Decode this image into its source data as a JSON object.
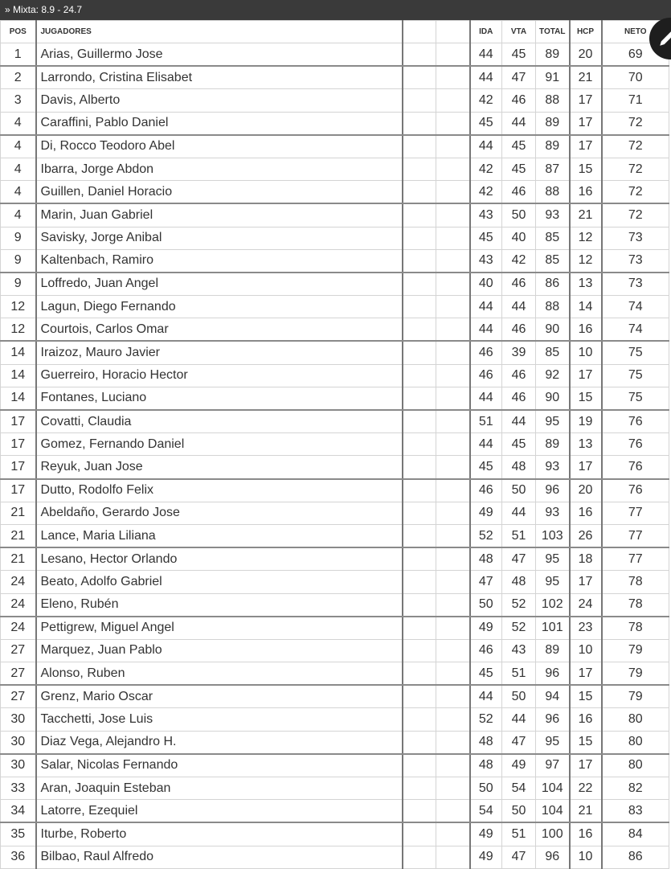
{
  "header": {
    "title": "» Mixta: 8.9 - 24.7"
  },
  "columns": {
    "pos": "POS",
    "jugadores": "JUGADORES",
    "blank1": "",
    "blank2": "",
    "ida": "IDA",
    "vta": "VTA",
    "total": "TOTAL",
    "hcp": "HCP",
    "neto": "NETO"
  },
  "fab": {
    "icon": "pencil-icon"
  },
  "rows": [
    [
      "1",
      "Arias, Guillermo Jose",
      "44",
      "45",
      "89",
      "20",
      "69"
    ],
    [
      "2",
      "Larrondo, Cristina Elisabet",
      "44",
      "47",
      "91",
      "21",
      "70"
    ],
    [
      "3",
      "Davis, Alberto",
      "42",
      "46",
      "88",
      "17",
      "71"
    ],
    [
      "4",
      "Caraffini, Pablo Daniel",
      "45",
      "44",
      "89",
      "17",
      "72"
    ],
    [
      "4",
      "Di, Rocco Teodoro Abel",
      "44",
      "45",
      "89",
      "17",
      "72"
    ],
    [
      "4",
      "Ibarra, Jorge Abdon",
      "42",
      "45",
      "87",
      "15",
      "72"
    ],
    [
      "4",
      "Guillen, Daniel Horacio",
      "42",
      "46",
      "88",
      "16",
      "72"
    ],
    [
      "4",
      "Marin, Juan Gabriel",
      "43",
      "50",
      "93",
      "21",
      "72"
    ],
    [
      "9",
      "Savisky, Jorge Anibal",
      "45",
      "40",
      "85",
      "12",
      "73"
    ],
    [
      "9",
      "Kaltenbach, Ramiro",
      "43",
      "42",
      "85",
      "12",
      "73"
    ],
    [
      "9",
      "Loffredo, Juan Angel",
      "40",
      "46",
      "86",
      "13",
      "73"
    ],
    [
      "12",
      "Lagun, Diego Fernando",
      "44",
      "44",
      "88",
      "14",
      "74"
    ],
    [
      "12",
      "Courtois, Carlos Omar",
      "44",
      "46",
      "90",
      "16",
      "74"
    ],
    [
      "14",
      "Iraizoz, Mauro Javier",
      "46",
      "39",
      "85",
      "10",
      "75"
    ],
    [
      "14",
      "Guerreiro, Horacio Hector",
      "46",
      "46",
      "92",
      "17",
      "75"
    ],
    [
      "14",
      "Fontanes, Luciano",
      "44",
      "46",
      "90",
      "15",
      "75"
    ],
    [
      "17",
      "Covatti, Claudia",
      "51",
      "44",
      "95",
      "19",
      "76"
    ],
    [
      "17",
      "Gomez, Fernando Daniel",
      "44",
      "45",
      "89",
      "13",
      "76"
    ],
    [
      "17",
      "Reyuk, Juan Jose",
      "45",
      "48",
      "93",
      "17",
      "76"
    ],
    [
      "17",
      "Dutto, Rodolfo Felix",
      "46",
      "50",
      "96",
      "20",
      "76"
    ],
    [
      "21",
      "Abeldaño, Gerardo Jose",
      "49",
      "44",
      "93",
      "16",
      "77"
    ],
    [
      "21",
      "Lance, Maria Liliana",
      "52",
      "51",
      "103",
      "26",
      "77"
    ],
    [
      "21",
      "Lesano, Hector Orlando",
      "48",
      "47",
      "95",
      "18",
      "77"
    ],
    [
      "24",
      "Beato, Adolfo Gabriel",
      "47",
      "48",
      "95",
      "17",
      "78"
    ],
    [
      "24",
      "Eleno, Rubén",
      "50",
      "52",
      "102",
      "24",
      "78"
    ],
    [
      "24",
      "Pettigrew, Miguel Angel",
      "49",
      "52",
      "101",
      "23",
      "78"
    ],
    [
      "27",
      "Marquez, Juan Pablo",
      "46",
      "43",
      "89",
      "10",
      "79"
    ],
    [
      "27",
      "Alonso, Ruben",
      "45",
      "51",
      "96",
      "17",
      "79"
    ],
    [
      "27",
      "Grenz, Mario Oscar",
      "44",
      "50",
      "94",
      "15",
      "79"
    ],
    [
      "30",
      "Tacchetti, Jose Luis",
      "52",
      "44",
      "96",
      "16",
      "80"
    ],
    [
      "30",
      "Diaz Vega, Alejandro H.",
      "48",
      "47",
      "95",
      "15",
      "80"
    ],
    [
      "30",
      "Salar, Nicolas Fernando",
      "48",
      "49",
      "97",
      "17",
      "80"
    ],
    [
      "33",
      "Aran, Joaquin Esteban",
      "50",
      "54",
      "104",
      "22",
      "82"
    ],
    [
      "34",
      "Latorre, Ezequiel",
      "54",
      "50",
      "104",
      "21",
      "83"
    ],
    [
      "35",
      "Iturbe, Roberto",
      "49",
      "51",
      "100",
      "16",
      "84"
    ],
    [
      "36",
      "Bilbao, Raul Alfredo",
      "49",
      "47",
      "96",
      "10",
      "86"
    ]
  ]
}
